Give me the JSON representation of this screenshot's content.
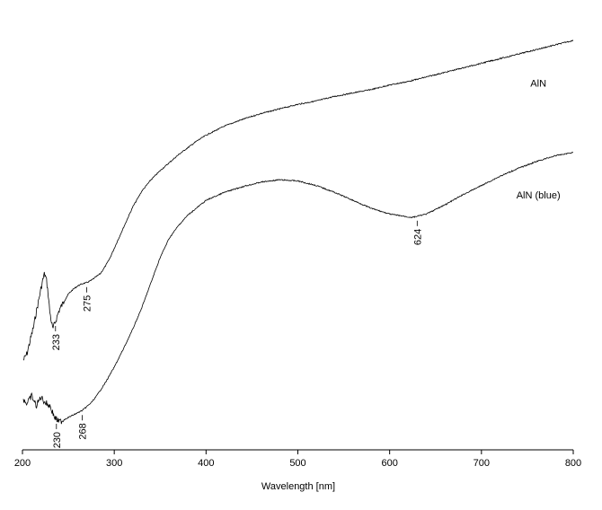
{
  "chart_data": {
    "type": "line",
    "xlabel": "Wavelength [nm]",
    "ylabel": "",
    "xlim": [
      200,
      800
    ],
    "xticks": [
      200,
      300,
      400,
      500,
      600,
      700,
      800
    ],
    "grid": false,
    "series": [
      {
        "name": "AlN",
        "x": [
          201,
          205,
          208,
          212,
          215,
          218,
          220,
          222,
          224,
          226,
          228,
          230,
          233,
          236,
          240,
          245,
          250,
          255,
          260,
          265,
          270,
          275,
          280,
          285,
          290,
          295,
          300,
          310,
          320,
          330,
          340,
          350,
          360,
          370,
          380,
          390,
          400,
          420,
          440,
          460,
          480,
          500,
          520,
          540,
          560,
          580,
          600,
          620,
          640,
          660,
          680,
          700,
          720,
          740,
          760,
          780,
          800
        ],
        "y": [
          0.04,
          0.1,
          0.2,
          0.33,
          0.46,
          0.58,
          0.66,
          0.74,
          0.8,
          0.75,
          0.62,
          0.45,
          0.31,
          0.38,
          0.48,
          0.55,
          0.62,
          0.66,
          0.69,
          0.71,
          0.72,
          0.74,
          0.77,
          0.8,
          0.86,
          0.93,
          1.02,
          1.2,
          1.38,
          1.52,
          1.62,
          1.7,
          1.77,
          1.84,
          1.9,
          1.96,
          2.01,
          2.09,
          2.15,
          2.2,
          2.24,
          2.28,
          2.31,
          2.35,
          2.38,
          2.41,
          2.45,
          2.48,
          2.52,
          2.56,
          2.6,
          2.64,
          2.68,
          2.72,
          2.76,
          2.8,
          2.84
        ]
      },
      {
        "name": "AlN (blue)",
        "x": [
          201,
          205,
          210,
          215,
          220,
          225,
          230,
          235,
          240,
          245,
          250,
          255,
          260,
          265,
          268,
          275,
          280,
          290,
          300,
          310,
          320,
          330,
          340,
          350,
          360,
          370,
          380,
          400,
          420,
          440,
          460,
          480,
          500,
          520,
          540,
          560,
          580,
          600,
          624,
          640,
          660,
          680,
          700,
          720,
          740,
          760,
          780,
          800
        ],
        "y": [
          -0.3,
          -0.34,
          -0.27,
          -0.36,
          -0.28,
          -0.33,
          -0.36,
          -0.46,
          -0.5,
          -0.48,
          -0.46,
          -0.44,
          -0.42,
          -0.4,
          -0.38,
          -0.33,
          -0.28,
          -0.16,
          -0.02,
          0.14,
          0.31,
          0.5,
          0.72,
          0.94,
          1.11,
          1.22,
          1.31,
          1.44,
          1.51,
          1.56,
          1.6,
          1.62,
          1.61,
          1.57,
          1.51,
          1.44,
          1.37,
          1.32,
          1.29,
          1.32,
          1.4,
          1.49,
          1.57,
          1.65,
          1.72,
          1.78,
          1.83,
          1.86
        ]
      }
    ],
    "annotations": [
      {
        "label": "233",
        "series": "AlN",
        "x": 236
      },
      {
        "label": "275",
        "series": "AlN",
        "x": 270
      },
      {
        "label": "230",
        "series": "AlN (blue)",
        "x": 237
      },
      {
        "label": "268",
        "series": "AlN (blue)",
        "x": 265
      },
      {
        "label": "624",
        "series": "AlN (blue)",
        "x": 630
      }
    ]
  }
}
